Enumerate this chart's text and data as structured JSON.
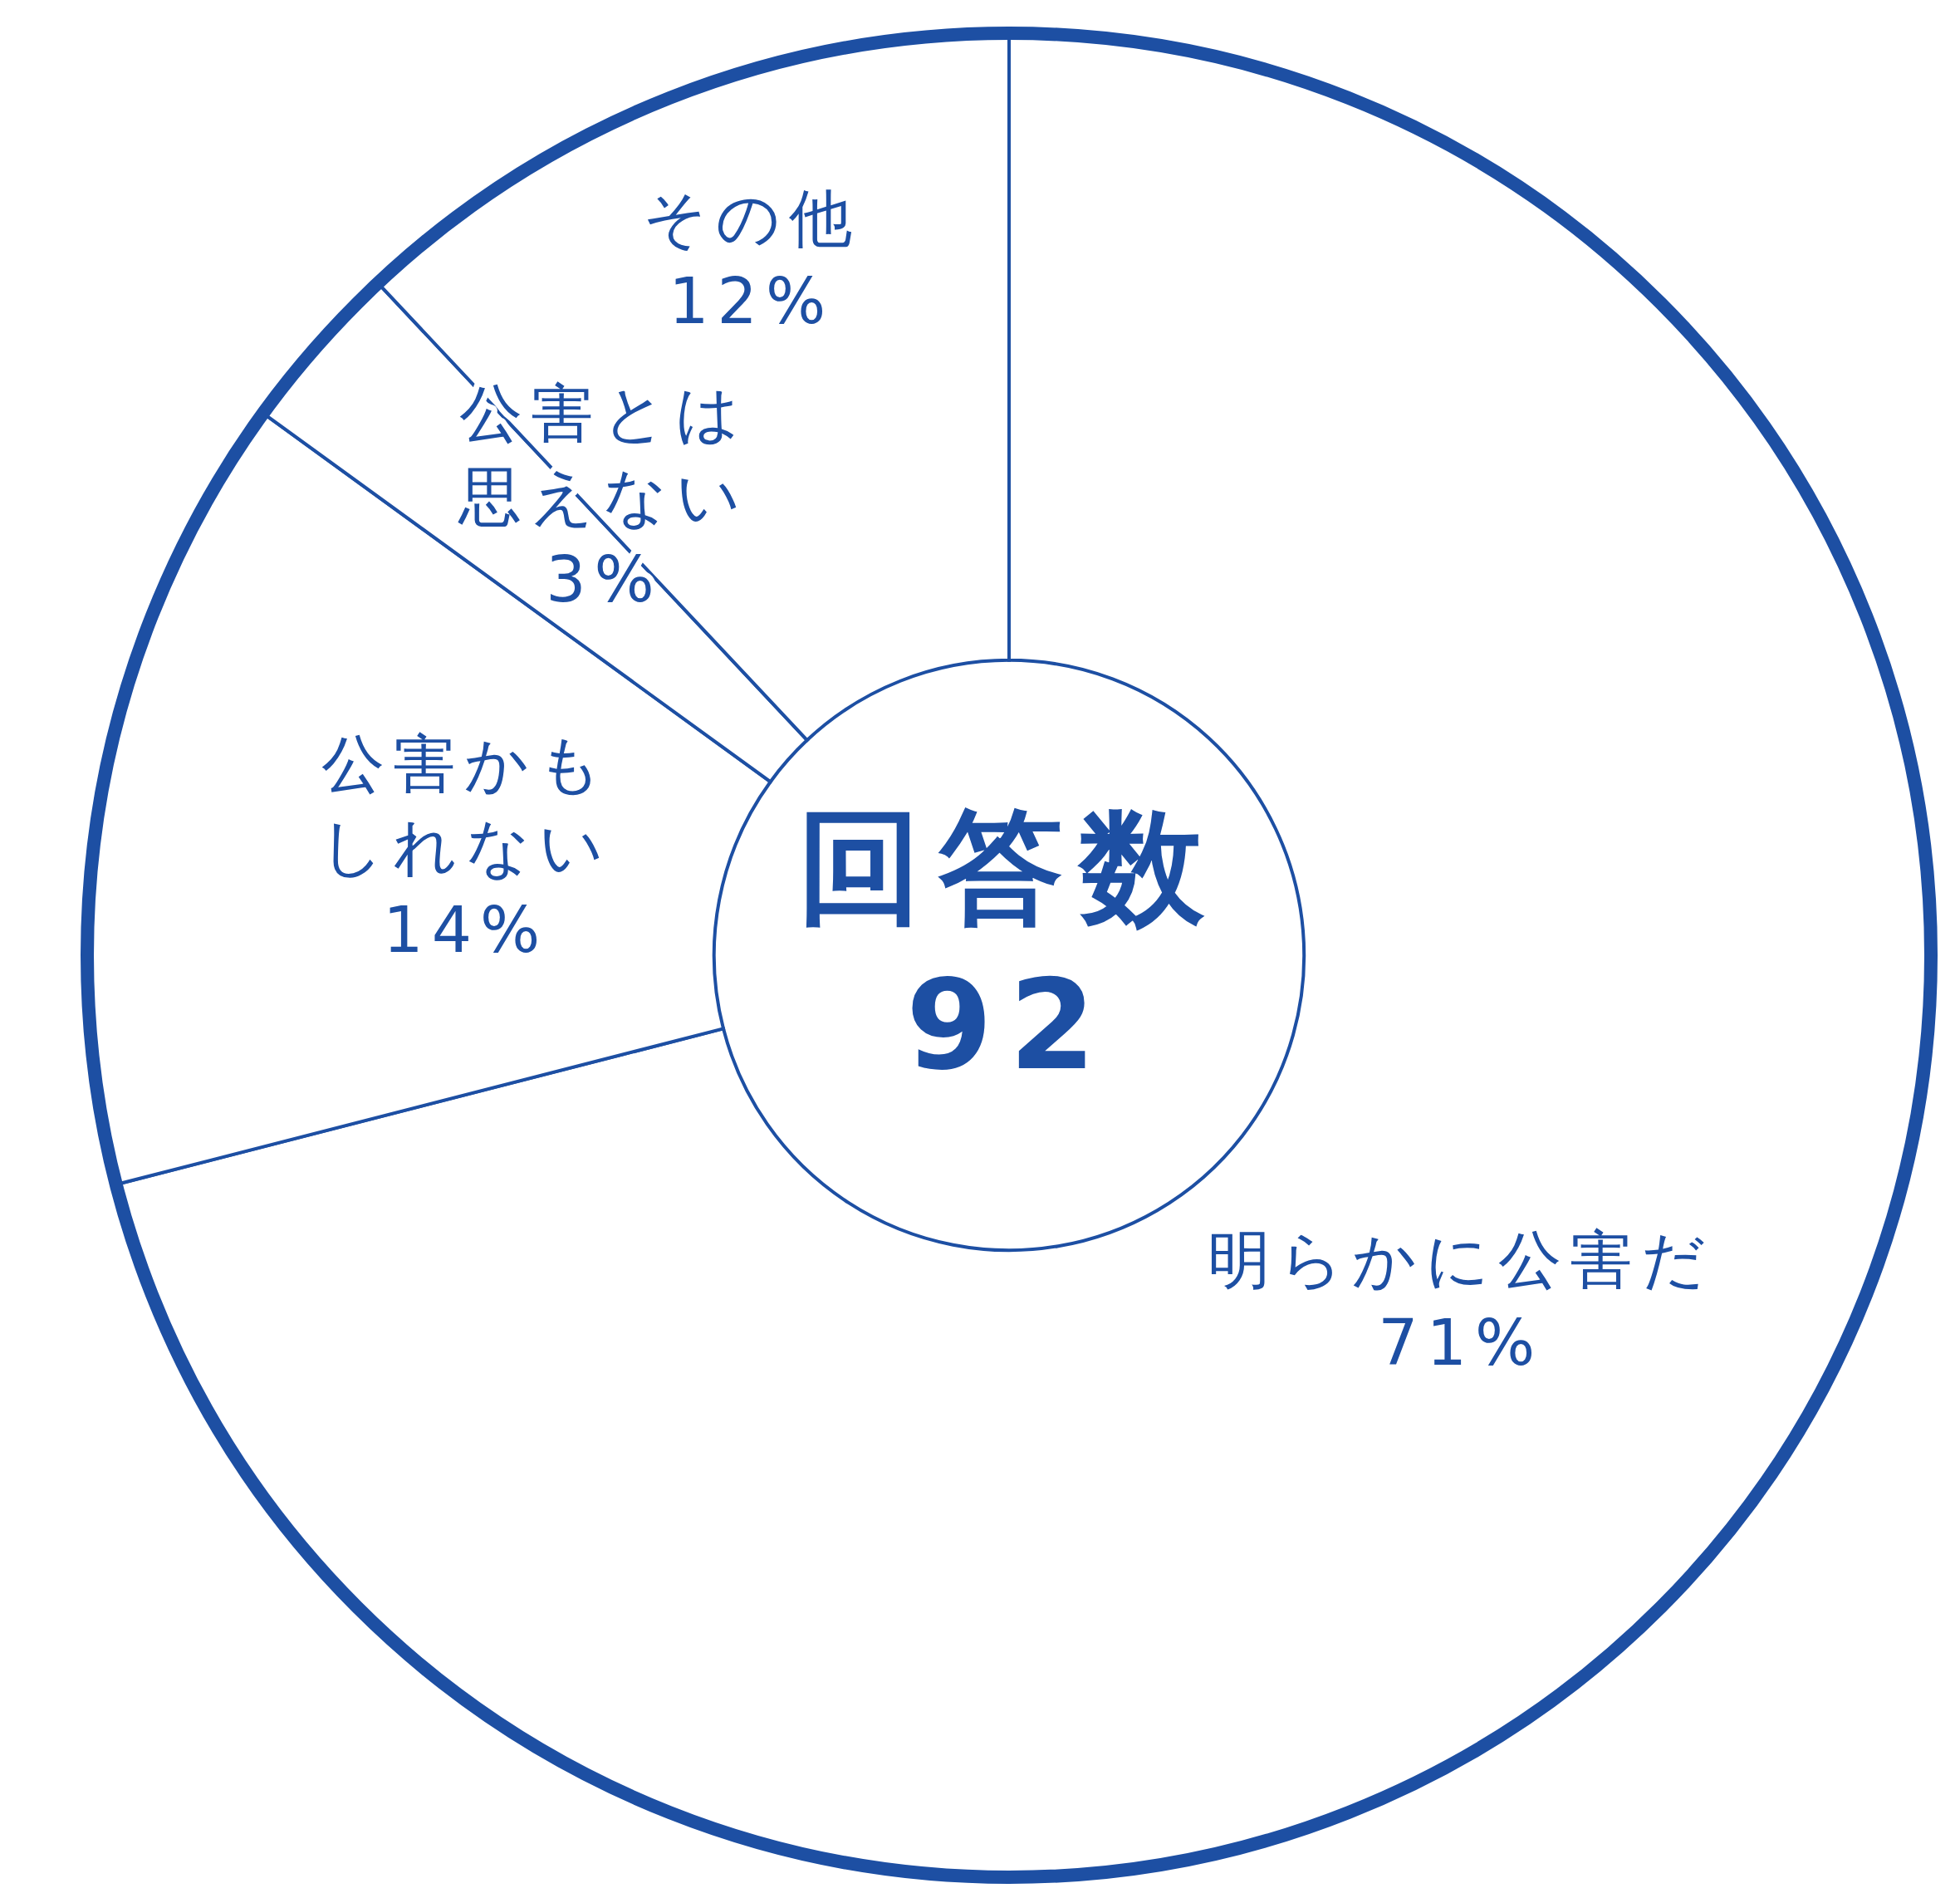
{
  "chart_data": {
    "type": "donut",
    "categories": [
      "明らかに公害だ",
      "公害かもしれない",
      "公害とは思えない",
      "その他"
    ],
    "values": [
      71,
      14,
      3,
      12
    ],
    "value_labels": [
      "71%",
      "14%",
      "3%",
      "12%"
    ],
    "colors": [
      "#ffffff",
      "#ffffff",
      "#ffffff",
      "#ffffff"
    ],
    "annotations": [
      "回答数",
      "92"
    ]
  }
}
